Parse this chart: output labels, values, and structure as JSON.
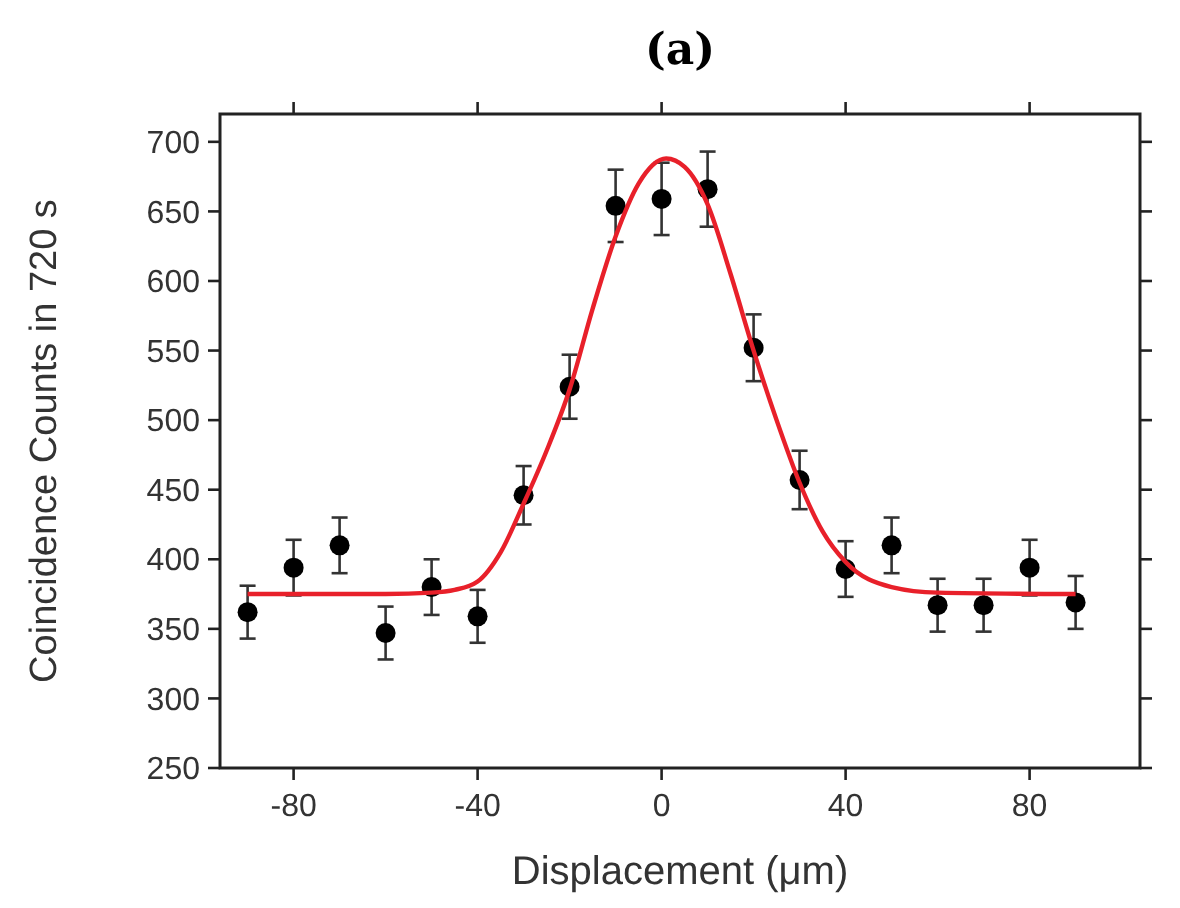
{
  "chart_data": {
    "type": "scatter",
    "title": "(a)",
    "xlabel": "Displacement (μm)",
    "ylabel": "Coincidence Counts in 720 s",
    "xlim": [
      -96,
      104
    ],
    "xticks": [
      -80,
      -40,
      0,
      40,
      80
    ],
    "ylim": [
      250,
      720
    ],
    "yticks": [
      250,
      300,
      350,
      400,
      450,
      500,
      550,
      600,
      650,
      700
    ],
    "grid": false,
    "marker": "circle",
    "series": [
      {
        "color": "#000000",
        "x": [
          -90,
          -80,
          -70,
          -60,
          -50,
          -40,
          -30,
          -20,
          -10,
          0,
          10,
          20,
          30,
          40,
          50,
          60,
          70,
          80,
          90
        ],
        "values": [
          362,
          394,
          410,
          347,
          380,
          359,
          446,
          524,
          654,
          659,
          666,
          552,
          457,
          393,
          410,
          367,
          367,
          394,
          369
        ],
        "errors": [
          19,
          20,
          20,
          19,
          20,
          19,
          21,
          23,
          26,
          26,
          27,
          24,
          21,
          20,
          20,
          19,
          19,
          20,
          19
        ]
      },
      {
        "type": "line",
        "color": "#e8202a",
        "line_style": "solid",
        "marker": "none",
        "x": [
          -90,
          -60,
          -50,
          -45,
          -40,
          -35,
          -30,
          -25,
          -20,
          -15,
          -10,
          -5,
          1,
          5,
          10,
          15,
          20,
          25,
          30,
          35,
          40,
          50,
          60,
          90
        ],
        "values": [
          375,
          375,
          376,
          378,
          384,
          405,
          440,
          478,
          522,
          580,
          632,
          670,
          688,
          682,
          655,
          605,
          550,
          500,
          455,
          420,
          398,
          380,
          376,
          375
        ]
      }
    ]
  }
}
